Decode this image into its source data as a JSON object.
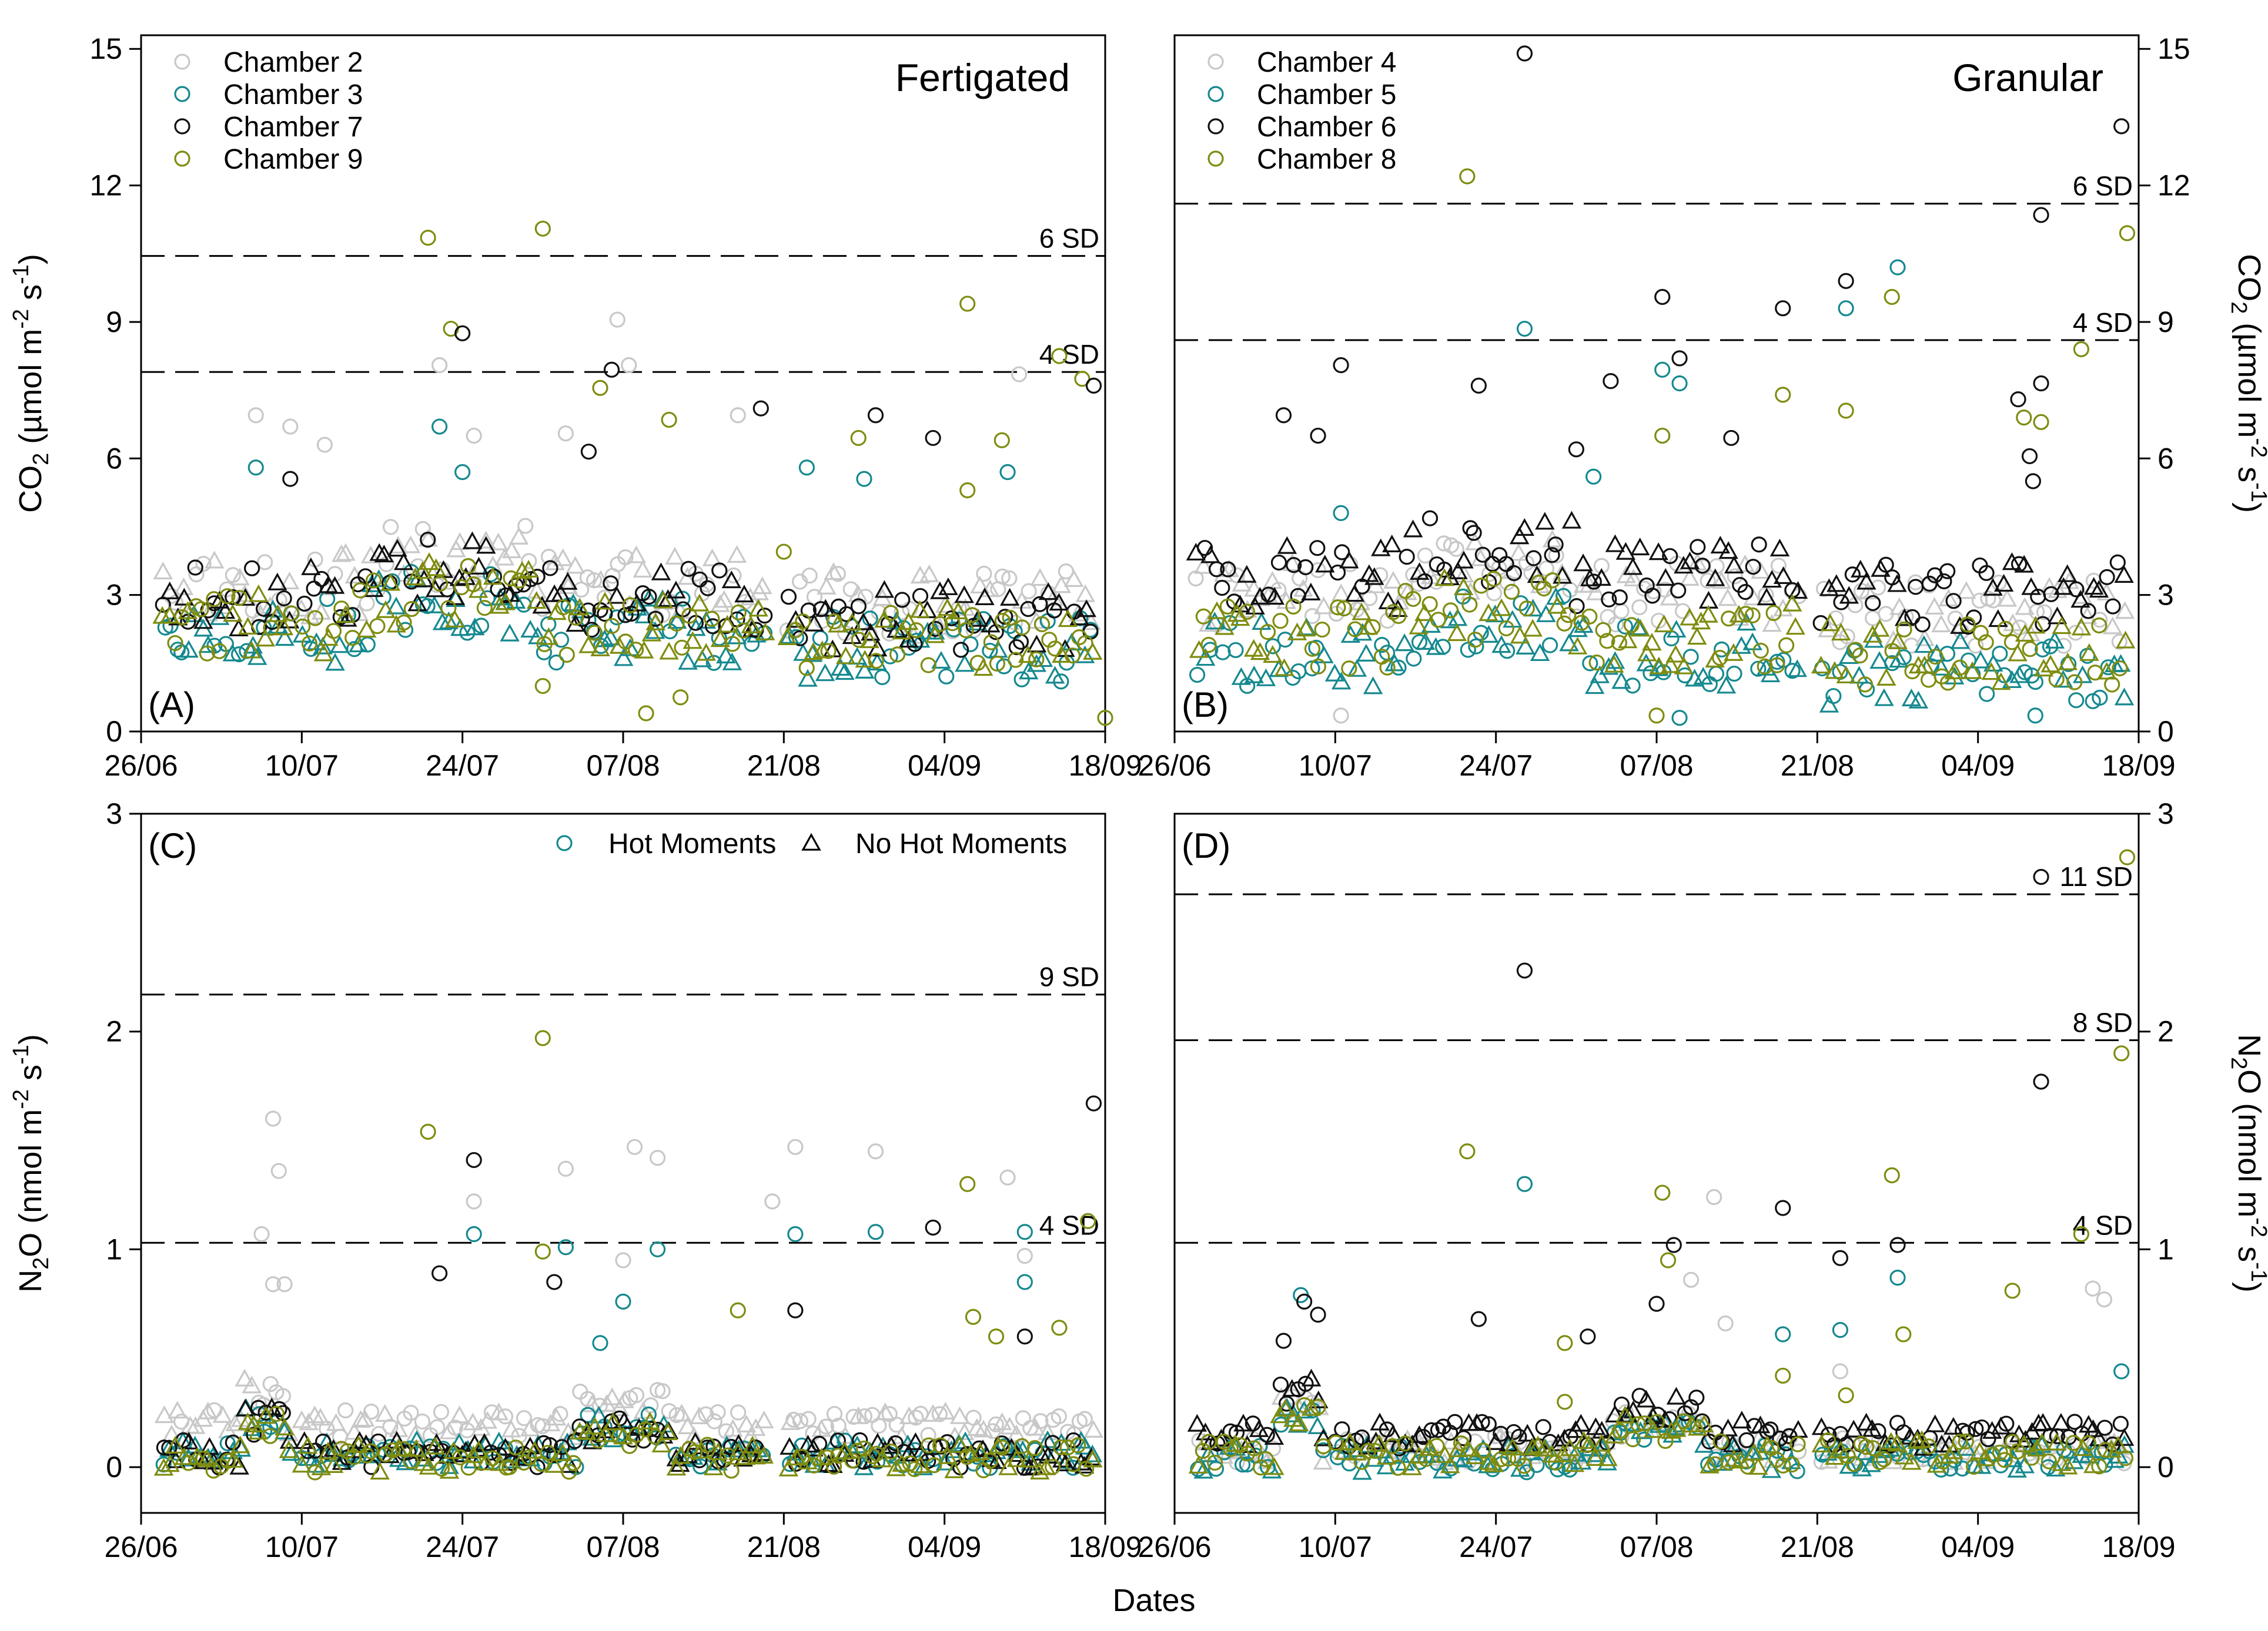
{
  "figure": {
    "x_title": "Dates",
    "colors": {
      "chamber_a": "#c8c8c8",
      "chamber_b": "#15898f",
      "chamber_c": "#111111",
      "chamber_d": "#7f8c0f"
    }
  },
  "chart_data": [
    {
      "id": "A",
      "type": "scatter",
      "panel_label": "(A)",
      "title": "Fertigated",
      "ylabel": "CO2 (µmol m-2 s-1)",
      "ylabel_parts": {
        "base": "CO",
        "sub": "2",
        "mid": " (µmol m",
        "sup1": "-2",
        "mid2": " s",
        "sup2": "-1",
        "end": ")"
      },
      "ylim": [
        0,
        15.3
      ],
      "yticks": [
        0,
        3,
        6,
        9,
        12,
        15
      ],
      "xticks": [
        "26/06",
        "10/07",
        "24/07",
        "07/08",
        "21/08",
        "04/09",
        "18/09"
      ],
      "legend": [
        "Chamber 2",
        "Chamber 3",
        "Chamber 7",
        "Chamber 9"
      ],
      "sd_lines": [
        {
          "label": "4 SD",
          "value": 7.9
        },
        {
          "label": "6 SD",
          "value": 10.45
        }
      ],
      "baseline": {
        "c1": 3.2,
        "c2": 2.2,
        "c3": 2.9,
        "c4": 2.4
      },
      "outliers": [
        {
          "day": 25,
          "value": 10.85,
          "series": 3
        },
        {
          "day": 35,
          "value": 11.05,
          "series": 3
        },
        {
          "day": 27,
          "value": 8.85,
          "series": 3
        },
        {
          "day": 28,
          "value": 8.75,
          "series": 2
        },
        {
          "day": 41.5,
          "value": 9.05,
          "series": 0
        },
        {
          "day": 42.5,
          "value": 8.05,
          "series": 0
        },
        {
          "day": 41,
          "value": 7.95,
          "series": 2
        },
        {
          "day": 40,
          "value": 7.55,
          "series": 3
        },
        {
          "day": 26,
          "value": 8.05,
          "series": 0
        },
        {
          "day": 72,
          "value": 9.4,
          "series": 3
        },
        {
          "day": 80,
          "value": 8.25,
          "series": 3
        },
        {
          "day": 82,
          "value": 7.75,
          "series": 3
        },
        {
          "day": 83,
          "value": 7.6,
          "series": 2
        },
        {
          "day": 76.5,
          "value": 7.85,
          "series": 0
        },
        {
          "day": 10,
          "value": 6.95,
          "series": 0
        },
        {
          "day": 13,
          "value": 6.7,
          "series": 0
        },
        {
          "day": 16,
          "value": 6.3,
          "series": 0
        },
        {
          "day": 26,
          "value": 6.7,
          "series": 1
        },
        {
          "day": 29,
          "value": 6.5,
          "series": 0
        },
        {
          "day": 37,
          "value": 6.55,
          "series": 0
        },
        {
          "day": 46,
          "value": 6.85,
          "series": 3
        },
        {
          "day": 52,
          "value": 6.95,
          "series": 0
        },
        {
          "day": 54,
          "value": 7.1,
          "series": 2
        },
        {
          "day": 64,
          "value": 6.95,
          "series": 2
        },
        {
          "day": 62.5,
          "value": 6.45,
          "series": 3
        },
        {
          "day": 69,
          "value": 6.45,
          "series": 2
        },
        {
          "day": 75,
          "value": 6.4,
          "series": 3
        },
        {
          "day": 39,
          "value": 6.15,
          "series": 2
        },
        {
          "day": 10,
          "value": 5.8,
          "series": 1
        },
        {
          "day": 13,
          "value": 5.55,
          "series": 2
        },
        {
          "day": 28,
          "value": 5.7,
          "series": 1
        },
        {
          "day": 58,
          "value": 5.8,
          "series": 1
        },
        {
          "day": 63,
          "value": 5.55,
          "series": 1
        },
        {
          "day": 75.5,
          "value": 5.7,
          "series": 1
        },
        {
          "day": 72,
          "value": 5.3,
          "series": 3
        },
        {
          "day": 35,
          "value": 1.0,
          "series": 3
        },
        {
          "day": 44,
          "value": 0.4,
          "series": 3
        },
        {
          "day": 47,
          "value": 0.75,
          "series": 3
        },
        {
          "day": 84,
          "value": 0.3,
          "series": 3
        },
        {
          "day": 56,
          "value": 3.95,
          "series": 3
        }
      ]
    },
    {
      "id": "B",
      "type": "scatter",
      "panel_label": "(B)",
      "title": "Granular",
      "ylabel": "CO2 (µmol m-2 s-1)",
      "ylabel_parts": {
        "base": "CO",
        "sub": "2",
        "mid": " (µmol m",
        "sup1": "-2",
        "mid2": " s",
        "sup2": "-1",
        "end": ")"
      },
      "ylim": [
        0,
        15.3
      ],
      "yticks": [
        0,
        3,
        6,
        9,
        12,
        15
      ],
      "xticks": [
        "26/06",
        "10/07",
        "24/07",
        "07/08",
        "21/08",
        "04/09",
        "18/09"
      ],
      "legend": [
        "Chamber 4",
        "Chamber 5",
        "Chamber 6",
        "Chamber 8"
      ],
      "sd_lines": [
        {
          "label": "4 SD",
          "value": 8.6
        },
        {
          "label": "6 SD",
          "value": 11.6
        }
      ],
      "baseline": {
        "c1": 3.0,
        "c2": 1.7,
        "c3": 3.4,
        "c4": 2.1
      },
      "outliers": [
        {
          "day": 30.5,
          "value": 14.9,
          "series": 2
        },
        {
          "day": 82.5,
          "value": 13.3,
          "series": 2
        },
        {
          "day": 25.5,
          "value": 12.2,
          "series": 3
        },
        {
          "day": 75.5,
          "value": 11.35,
          "series": 2
        },
        {
          "day": 83,
          "value": 10.95,
          "series": 3
        },
        {
          "day": 63,
          "value": 10.2,
          "series": 1
        },
        {
          "day": 58.5,
          "value": 9.9,
          "series": 2
        },
        {
          "day": 58.5,
          "value": 9.3,
          "series": 1
        },
        {
          "day": 62.5,
          "value": 9.55,
          "series": 3
        },
        {
          "day": 42.5,
          "value": 9.55,
          "series": 2
        },
        {
          "day": 53,
          "value": 9.3,
          "series": 2
        },
        {
          "day": 30.5,
          "value": 8.85,
          "series": 1
        },
        {
          "day": 79,
          "value": 8.4,
          "series": 3
        },
        {
          "day": 44,
          "value": 8.2,
          "series": 2
        },
        {
          "day": 14.5,
          "value": 8.05,
          "series": 2
        },
        {
          "day": 42.5,
          "value": 7.95,
          "series": 1
        },
        {
          "day": 44,
          "value": 7.65,
          "series": 1
        },
        {
          "day": 26.5,
          "value": 7.6,
          "series": 2
        },
        {
          "day": 38,
          "value": 7.7,
          "series": 2
        },
        {
          "day": 53,
          "value": 7.4,
          "series": 3
        },
        {
          "day": 58.5,
          "value": 7.05,
          "series": 3
        },
        {
          "day": 73.5,
          "value": 7.3,
          "series": 2
        },
        {
          "day": 75.5,
          "value": 7.65,
          "series": 2
        },
        {
          "day": 9.5,
          "value": 6.95,
          "series": 2
        },
        {
          "day": 12.5,
          "value": 6.5,
          "series": 2
        },
        {
          "day": 35,
          "value": 6.2,
          "series": 2
        },
        {
          "day": 42.5,
          "value": 6.5,
          "series": 3
        },
        {
          "day": 48.5,
          "value": 6.45,
          "series": 2
        },
        {
          "day": 75.5,
          "value": 6.8,
          "series": 3
        },
        {
          "day": 74,
          "value": 6.9,
          "series": 3
        },
        {
          "day": 74.5,
          "value": 6.05,
          "series": 2
        },
        {
          "day": 74.8,
          "value": 5.5,
          "series": 2
        },
        {
          "day": 36.5,
          "value": 5.6,
          "series": 1
        },
        {
          "day": 14.5,
          "value": 4.8,
          "series": 1
        },
        {
          "day": 75,
          "value": 0.35,
          "series": 1
        },
        {
          "day": 42,
          "value": 0.35,
          "series": 3
        },
        {
          "day": 44,
          "value": 0.3,
          "series": 1
        },
        {
          "day": 14.5,
          "value": 0.35,
          "series": 0
        }
      ]
    },
    {
      "id": "C",
      "type": "scatter",
      "panel_label": "(C)",
      "title": "",
      "ylabel": "N2O (nmol m-2 s-1)",
      "ylabel_parts": {
        "base": "N",
        "sub": "2",
        "mid": "O (nmol m",
        "sup1": "-2",
        "mid2": " s",
        "sup2": "-1",
        "end": ")"
      },
      "ylim": [
        -0.21,
        3.0
      ],
      "yticks": [
        0,
        1,
        2,
        3
      ],
      "xticks": [
        "26/06",
        "10/07",
        "24/07",
        "07/08",
        "21/08",
        "04/09",
        "18/09"
      ],
      "legend": [
        "Hot Moments",
        "No Hot Moments"
      ],
      "sd_lines": [
        {
          "label": "4 SD",
          "value": 1.03
        },
        {
          "label": "9 SD",
          "value": 2.17
        }
      ],
      "baseline": {
        "c1": 0.2,
        "c2": 0.06,
        "c3": 0.06,
        "c4": 0.04
      },
      "outliers": [
        {
          "day": 35,
          "value": 1.97,
          "series": 3
        },
        {
          "day": 83,
          "value": 1.67,
          "series": 2
        },
        {
          "day": 11.5,
          "value": 1.6,
          "series": 0
        },
        {
          "day": 25,
          "value": 1.54,
          "series": 3
        },
        {
          "day": 43,
          "value": 1.47,
          "series": 0
        },
        {
          "day": 64,
          "value": 1.45,
          "series": 0
        },
        {
          "day": 57,
          "value": 1.47,
          "series": 0
        },
        {
          "day": 45,
          "value": 1.42,
          "series": 0
        },
        {
          "day": 29,
          "value": 1.41,
          "series": 2
        },
        {
          "day": 37,
          "value": 1.37,
          "series": 0
        },
        {
          "day": 12,
          "value": 1.36,
          "series": 0
        },
        {
          "day": 75.5,
          "value": 1.33,
          "series": 0
        },
        {
          "day": 72,
          "value": 1.3,
          "series": 3
        },
        {
          "day": 29,
          "value": 1.22,
          "series": 0
        },
        {
          "day": 55,
          "value": 1.22,
          "series": 0
        },
        {
          "day": 82.5,
          "value": 1.13,
          "series": 3
        },
        {
          "day": 69,
          "value": 1.1,
          "series": 2
        },
        {
          "day": 64,
          "value": 1.08,
          "series": 1
        },
        {
          "day": 29,
          "value": 1.07,
          "series": 1
        },
        {
          "day": 77,
          "value": 1.08,
          "series": 1
        },
        {
          "day": 10.5,
          "value": 1.07,
          "series": 0
        },
        {
          "day": 57,
          "value": 1.07,
          "series": 1
        },
        {
          "day": 37,
          "value": 1.01,
          "series": 1
        },
        {
          "day": 45,
          "value": 1.0,
          "series": 1
        },
        {
          "day": 35,
          "value": 0.99,
          "series": 3
        },
        {
          "day": 77,
          "value": 0.97,
          "series": 0
        },
        {
          "day": 42,
          "value": 0.95,
          "series": 0
        },
        {
          "day": 26,
          "value": 0.89,
          "series": 2
        },
        {
          "day": 36,
          "value": 0.85,
          "series": 2
        },
        {
          "day": 77,
          "value": 0.85,
          "series": 1
        },
        {
          "day": 11.5,
          "value": 0.84,
          "series": 0
        },
        {
          "day": 12.5,
          "value": 0.84,
          "series": 0
        },
        {
          "day": 42,
          "value": 0.76,
          "series": 1
        },
        {
          "day": 57,
          "value": 0.72,
          "series": 2
        },
        {
          "day": 52,
          "value": 0.72,
          "series": 3
        },
        {
          "day": 72.5,
          "value": 0.69,
          "series": 3
        },
        {
          "day": 40,
          "value": 0.57,
          "series": 1
        },
        {
          "day": 74.5,
          "value": 0.6,
          "series": 3
        },
        {
          "day": 77,
          "value": 0.6,
          "series": 2
        },
        {
          "day": 80,
          "value": 0.64,
          "series": 3
        }
      ]
    },
    {
      "id": "D",
      "type": "scatter",
      "panel_label": "(D)",
      "title": "",
      "ylabel": "N2O (nmol m-2 s-1)",
      "ylabel_parts": {
        "base": "N",
        "sub": "2",
        "mid": "O (nmol m",
        "sup1": "-2",
        "mid2": " s",
        "sup2": "-1",
        "end": ")"
      },
      "ylim": [
        -0.21,
        3.0
      ],
      "yticks": [
        0,
        1,
        2,
        3
      ],
      "xticks": [
        "26/06",
        "10/07",
        "24/07",
        "07/08",
        "21/08",
        "04/09",
        "18/09"
      ],
      "legend": [],
      "sd_lines": [
        {
          "label": "4 SD",
          "value": 1.03
        },
        {
          "label": "8 SD",
          "value": 1.96
        },
        {
          "label": "11 SD",
          "value": 2.63
        }
      ],
      "baseline": {
        "c1": 0.08,
        "c2": 0.04,
        "c3": 0.15,
        "c4": 0.06
      },
      "outliers": [
        {
          "day": 83,
          "value": 2.8,
          "series": 3
        },
        {
          "day": 75.5,
          "value": 2.71,
          "series": 2
        },
        {
          "day": 30.5,
          "value": 2.28,
          "series": 2
        },
        {
          "day": 82.5,
          "value": 1.9,
          "series": 3
        },
        {
          "day": 75.5,
          "value": 1.77,
          "series": 2
        },
        {
          "day": 25.5,
          "value": 1.45,
          "series": 3
        },
        {
          "day": 62.5,
          "value": 1.34,
          "series": 3
        },
        {
          "day": 30.5,
          "value": 1.3,
          "series": 1
        },
        {
          "day": 42.5,
          "value": 1.26,
          "series": 3
        },
        {
          "day": 47,
          "value": 1.24,
          "series": 0
        },
        {
          "day": 53,
          "value": 1.19,
          "series": 2
        },
        {
          "day": 79,
          "value": 1.07,
          "series": 3
        },
        {
          "day": 43.5,
          "value": 1.02,
          "series": 2
        },
        {
          "day": 63,
          "value": 1.02,
          "series": 2
        },
        {
          "day": 58,
          "value": 0.96,
          "series": 2
        },
        {
          "day": 43,
          "value": 0.95,
          "series": 3
        },
        {
          "day": 63,
          "value": 0.87,
          "series": 1
        },
        {
          "day": 45,
          "value": 0.86,
          "series": 0
        },
        {
          "day": 80,
          "value": 0.82,
          "series": 0
        },
        {
          "day": 73,
          "value": 0.81,
          "series": 3
        },
        {
          "day": 11,
          "value": 0.79,
          "series": 1
        },
        {
          "day": 11.3,
          "value": 0.76,
          "series": 2
        },
        {
          "day": 42,
          "value": 0.75,
          "series": 2
        },
        {
          "day": 81,
          "value": 0.77,
          "series": 0
        },
        {
          "day": 12.5,
          "value": 0.7,
          "series": 2
        },
        {
          "day": 26.5,
          "value": 0.68,
          "series": 2
        },
        {
          "day": 48,
          "value": 0.66,
          "series": 0
        },
        {
          "day": 58,
          "value": 0.63,
          "series": 1
        },
        {
          "day": 63.5,
          "value": 0.61,
          "series": 3
        },
        {
          "day": 36,
          "value": 0.6,
          "series": 2
        },
        {
          "day": 34,
          "value": 0.57,
          "series": 3
        },
        {
          "day": 53,
          "value": 0.61,
          "series": 1
        },
        {
          "day": 9.5,
          "value": 0.58,
          "series": 2
        },
        {
          "day": 82.5,
          "value": 0.44,
          "series": 1
        },
        {
          "day": 53,
          "value": 0.42,
          "series": 3
        },
        {
          "day": 58,
          "value": 0.44,
          "series": 0
        },
        {
          "day": 58.5,
          "value": 0.33,
          "series": 3
        },
        {
          "day": 34,
          "value": 0.3,
          "series": 3
        }
      ]
    }
  ]
}
